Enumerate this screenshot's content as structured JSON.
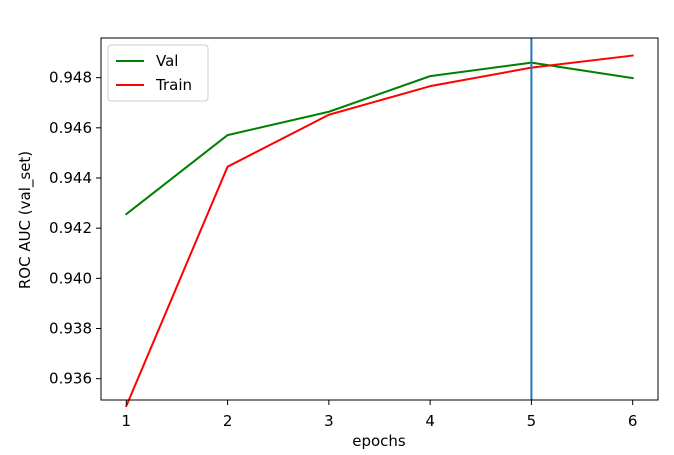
{
  "chart_data": {
    "type": "line",
    "title": "",
    "xlabel": "epochs",
    "ylabel": "ROC AUC (val_set)",
    "x": [
      1,
      2,
      3,
      4,
      5,
      6
    ],
    "xlim": [
      0.75,
      6.25
    ],
    "ylim": [
      0.93515,
      0.94958
    ],
    "x_ticks": [
      1,
      2,
      3,
      4,
      5,
      6
    ],
    "x_tick_labels": [
      "1",
      "2",
      "3",
      "4",
      "5",
      "6"
    ],
    "y_ticks": [
      0.936,
      0.938,
      0.94,
      0.942,
      0.944,
      0.946,
      0.948
    ],
    "y_tick_labels": [
      "0.936",
      "0.938",
      "0.940",
      "0.942",
      "0.944",
      "0.946",
      "0.948"
    ],
    "grid": false,
    "legend_position": "top-left",
    "series": [
      {
        "name": "Val",
        "color": "#008000",
        "values": [
          0.94256,
          0.94571,
          0.94664,
          0.94806,
          0.9486,
          0.94798
        ]
      },
      {
        "name": "Train",
        "color": "#ff0000",
        "values": [
          0.93491,
          0.94445,
          0.94652,
          0.94766,
          0.9484,
          0.94888
        ]
      }
    ],
    "vertical_line": {
      "x": 5,
      "color": "#1f77b4"
    }
  }
}
